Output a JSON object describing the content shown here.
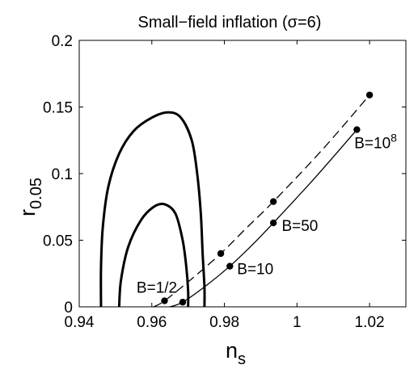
{
  "chart_data": {
    "type": "line",
    "title": "Small−field inflation (σ=6)",
    "xlabel": "n",
    "xlabel_sub": "s",
    "ylabel": "r",
    "ylabel_sub": "0.05",
    "xlim": [
      0.94,
      1.03
    ],
    "ylim": [
      0,
      0.2
    ],
    "xticks": [
      0.94,
      0.96,
      0.98,
      1.0,
      1.02
    ],
    "xtick_labels": [
      "0.94",
      "0.96",
      "0.98",
      "1",
      "1.02"
    ],
    "yticks": [
      0,
      0.05,
      0.1,
      0.15,
      0.2
    ],
    "ytick_labels": [
      "0",
      "0.05",
      "0.1",
      "0.15",
      "0.2"
    ],
    "grid": false,
    "contours": [
      {
        "level": "outer",
        "points": [
          [
            0.946,
            0
          ],
          [
            0.946,
            0.03
          ],
          [
            0.9465,
            0.06
          ],
          [
            0.948,
            0.09
          ],
          [
            0.951,
            0.115
          ],
          [
            0.955,
            0.132
          ],
          [
            0.96,
            0.142
          ],
          [
            0.9645,
            0.146
          ],
          [
            0.968,
            0.142
          ],
          [
            0.971,
            0.125
          ],
          [
            0.9725,
            0.1
          ],
          [
            0.9735,
            0.07
          ],
          [
            0.974,
            0.04
          ],
          [
            0.9745,
            0.015
          ],
          [
            0.9745,
            0
          ]
        ]
      },
      {
        "level": "inner",
        "points": [
          [
            0.951,
            0
          ],
          [
            0.9515,
            0.02
          ],
          [
            0.9535,
            0.045
          ],
          [
            0.957,
            0.065
          ],
          [
            0.9605,
            0.075
          ],
          [
            0.9635,
            0.077
          ],
          [
            0.9665,
            0.07
          ],
          [
            0.9685,
            0.05
          ],
          [
            0.9695,
            0.03
          ],
          [
            0.97,
            0.012
          ],
          [
            0.97,
            0
          ]
        ]
      }
    ],
    "series": [
      {
        "style": "solid",
        "points": [
          [
            0.9685,
            0.0035
          ],
          [
            0.9815,
            0.0305
          ],
          [
            0.9935,
            0.063
          ],
          [
            1.0165,
            0.133
          ]
        ],
        "curve": [
          [
            0.965,
            0
          ],
          [
            0.9685,
            0.0035
          ],
          [
            0.975,
            0.016
          ],
          [
            0.9815,
            0.0305
          ],
          [
            0.9875,
            0.046
          ],
          [
            0.9935,
            0.063
          ],
          [
            1.005,
            0.097
          ],
          [
            1.0165,
            0.133
          ]
        ]
      },
      {
        "style": "dashed",
        "points": [
          [
            0.9635,
            0.0045
          ],
          [
            0.979,
            0.04
          ],
          [
            0.9935,
            0.079
          ],
          [
            1.02,
            0.159
          ]
        ],
        "curve": [
          [
            0.9605,
            0
          ],
          [
            0.9635,
            0.0045
          ],
          [
            0.971,
            0.021
          ],
          [
            0.979,
            0.04
          ],
          [
            0.986,
            0.059
          ],
          [
            0.9935,
            0.079
          ],
          [
            1.007,
            0.118
          ],
          [
            1.02,
            0.159
          ]
        ]
      }
    ],
    "annotations": [
      {
        "text": "B=1/2",
        "x": 0.9558,
        "y": 0.0105
      },
      {
        "text": "B=10",
        "x": 0.9835,
        "y": 0.0245
      },
      {
        "text": "B=50",
        "x": 0.9958,
        "y": 0.057
      },
      {
        "text": "B=10",
        "sup": "8",
        "x": 1.0158,
        "y": 0.119
      }
    ]
  }
}
